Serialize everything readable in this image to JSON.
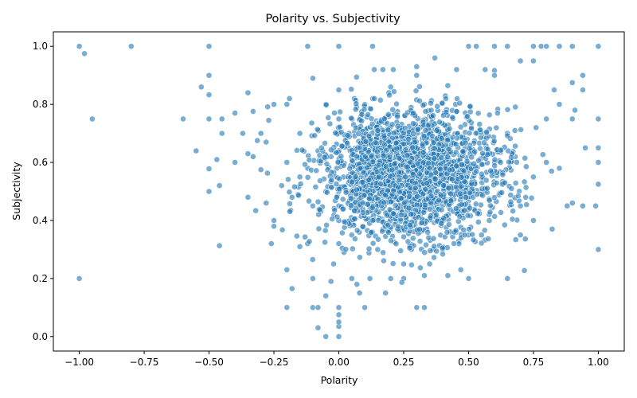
{
  "chart_data": {
    "type": "scatter",
    "title": "Polarity vs. Subjectivity",
    "xlabel": "Polarity",
    "ylabel": "Subjectivity",
    "xlim": [
      -1.1,
      1.1
    ],
    "ylim": [
      -0.05,
      1.05
    ],
    "xticks": [
      "-1.00",
      "-0.75",
      "-0.50",
      "-0.25",
      "0.00",
      "0.25",
      "0.50",
      "0.75",
      "1.00"
    ],
    "yticks": [
      "0.0",
      "0.2",
      "0.4",
      "0.6",
      "0.8",
      "1.0"
    ],
    "grid": false,
    "legend": "none",
    "marker_color": "#1f77b4",
    "points": [
      [
        -1.0,
        1.0
      ],
      [
        -0.98,
        0.975
      ],
      [
        -0.8,
        1.0
      ],
      [
        -0.5,
        1.0
      ],
      [
        -0.5,
        0.9
      ],
      [
        -0.5,
        0.833
      ],
      [
        -0.53,
        0.86
      ],
      [
        -0.95,
        0.75
      ],
      [
        -0.6,
        0.75
      ],
      [
        -0.5,
        0.75
      ],
      [
        -0.45,
        0.75
      ],
      [
        -0.45,
        0.7
      ],
      [
        -0.4,
        0.77
      ],
      [
        -0.37,
        0.7
      ],
      [
        -0.35,
        0.84
      ],
      [
        -0.33,
        0.776
      ],
      [
        -0.3,
        0.7
      ],
      [
        -0.27,
        0.745
      ],
      [
        -0.25,
        0.8
      ],
      [
        -0.2,
        0.8
      ],
      [
        -0.19,
        0.82
      ],
      [
        -0.55,
        0.64
      ],
      [
        -0.47,
        0.61
      ],
      [
        -0.4,
        0.6
      ],
      [
        -0.35,
        0.63
      ],
      [
        -0.33,
        0.62
      ],
      [
        -0.3,
        0.575
      ],
      [
        -0.28,
        0.67
      ],
      [
        -0.5,
        0.578
      ],
      [
        -0.5,
        0.5
      ],
      [
        -0.46,
        0.52
      ],
      [
        -0.35,
        0.48
      ],
      [
        -0.32,
        0.434
      ],
      [
        -0.28,
        0.46
      ],
      [
        -0.25,
        0.4
      ],
      [
        -0.25,
        0.38
      ],
      [
        -0.26,
        0.32
      ],
      [
        -0.46,
        0.313
      ],
      [
        -1.0,
        0.2
      ],
      [
        -0.2,
        0.1
      ],
      [
        -0.18,
        0.165
      ],
      [
        -0.2,
        0.23
      ],
      [
        -0.15,
        0.31
      ],
      [
        -0.12,
        0.32
      ],
      [
        -0.1,
        0.1
      ],
      [
        -0.1,
        0.2
      ],
      [
        -0.08,
        0.1
      ],
      [
        -0.08,
        0.03
      ],
      [
        -0.05,
        0.0
      ],
      [
        -0.05,
        0.14
      ],
      [
        -0.03,
        0.19
      ],
      [
        -0.1,
        0.89
      ],
      [
        -0.12,
        1.0
      ],
      [
        -0.05,
        0.8
      ],
      [
        -0.03,
        0.62
      ],
      [
        -0.15,
        0.7
      ],
      [
        0.0,
        0.0
      ],
      [
        0.0,
        0.035
      ],
      [
        0.0,
        0.05
      ],
      [
        0.0,
        0.075
      ],
      [
        0.0,
        0.1
      ],
      [
        0.0,
        1.0
      ],
      [
        0.0,
        0.85
      ],
      [
        0.0,
        0.75
      ],
      [
        0.0,
        0.7
      ],
      [
        0.0,
        0.6
      ],
      [
        0.0,
        0.5
      ],
      [
        0.0,
        0.45
      ],
      [
        0.0,
        0.4
      ],
      [
        0.0,
        0.32
      ],
      [
        0.02,
        0.29
      ],
      [
        0.05,
        0.2
      ],
      [
        0.04,
        0.7
      ],
      [
        0.06,
        0.82
      ],
      [
        0.1,
        0.1
      ],
      [
        0.12,
        0.2
      ],
      [
        0.13,
        1.0
      ],
      [
        0.17,
        0.92
      ],
      [
        0.2,
        0.2
      ],
      [
        0.25,
        0.2
      ],
      [
        0.3,
        0.93
      ],
      [
        0.3,
        0.9
      ],
      [
        0.3,
        0.1
      ],
      [
        0.33,
        0.1
      ],
      [
        0.33,
        0.21
      ],
      [
        0.37,
        0.96
      ],
      [
        0.42,
        0.21
      ],
      [
        0.47,
        0.23
      ],
      [
        0.5,
        1.0
      ],
      [
        0.5,
        0.2
      ],
      [
        0.53,
        1.0
      ],
      [
        0.55,
        0.35
      ],
      [
        0.6,
        1.0
      ],
      [
        0.6,
        0.917
      ],
      [
        0.6,
        0.9
      ],
      [
        0.65,
        1.0
      ],
      [
        0.65,
        0.2
      ],
      [
        0.7,
        0.95
      ],
      [
        0.7,
        0.35
      ],
      [
        0.75,
        1.0
      ],
      [
        0.75,
        0.95
      ],
      [
        0.78,
        1.0
      ],
      [
        0.8,
        1.0
      ],
      [
        0.85,
        1.0
      ],
      [
        0.88,
        0.45
      ],
      [
        0.9,
        1.0
      ],
      [
        0.9,
        0.875
      ],
      [
        0.9,
        0.75
      ],
      [
        0.91,
        0.78
      ],
      [
        0.94,
        0.9
      ],
      [
        0.94,
        0.85
      ],
      [
        0.95,
        0.65
      ],
      [
        0.94,
        0.45
      ],
      [
        0.99,
        0.45
      ],
      [
        1.0,
        1.0
      ],
      [
        1.0,
        0.75
      ],
      [
        1.0,
        0.65
      ],
      [
        1.0,
        0.6
      ],
      [
        1.0,
        0.525
      ],
      [
        1.0,
        0.3
      ],
      [
        0.8,
        0.75
      ],
      [
        0.8,
        0.6
      ],
      [
        0.82,
        0.57
      ],
      [
        0.85,
        0.58
      ],
      [
        0.85,
        0.8
      ],
      [
        0.83,
        0.85
      ],
      [
        0.76,
        0.72
      ],
      [
        0.72,
        0.48
      ],
      [
        0.7,
        0.45
      ],
      [
        0.75,
        0.4
      ],
      [
        0.75,
        0.55
      ],
      [
        0.68,
        0.62
      ],
      [
        0.65,
        0.7
      ],
      [
        0.6,
        0.6
      ],
      [
        0.58,
        0.4
      ],
      [
        0.55,
        0.5
      ],
      [
        0.5,
        0.45
      ],
      [
        0.5,
        0.35
      ],
      [
        0.45,
        0.8
      ],
      [
        0.4,
        0.3
      ],
      [
        0.35,
        0.25
      ],
      [
        0.33,
        0.8
      ],
      [
        0.28,
        0.3
      ],
      [
        0.25,
        0.25
      ],
      [
        0.2,
        0.86
      ],
      [
        0.18,
        0.15
      ],
      [
        0.15,
        0.3
      ],
      [
        0.1,
        0.8
      ],
      [
        0.08,
        0.15
      ],
      [
        0.05,
        0.35
      ],
      [
        -0.02,
        0.25
      ],
      [
        -0.1,
        0.45
      ],
      [
        -0.12,
        0.58
      ],
      [
        -0.08,
        0.64
      ],
      [
        -0.05,
        0.5
      ],
      [
        -0.15,
        0.55
      ],
      [
        -0.2,
        0.6
      ],
      [
        -0.22,
        0.52
      ],
      [
        -0.18,
        0.48
      ]
    ],
    "cluster": {
      "count": 2200,
      "center_x": 0.28,
      "center_y": 0.56,
      "sd_x": 0.17,
      "sd_y": 0.11,
      "seed": 7
    }
  }
}
